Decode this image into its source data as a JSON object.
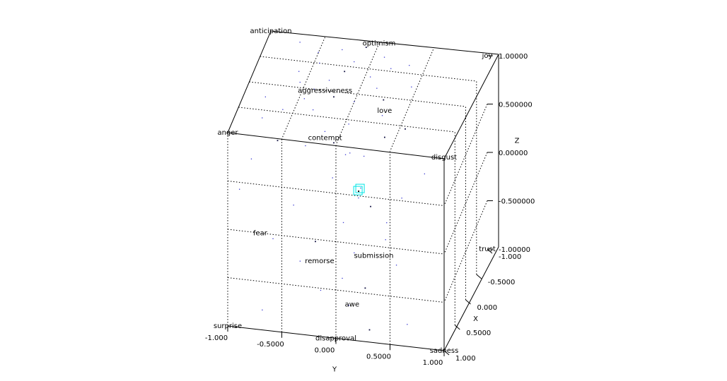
{
  "chart_data": {
    "type": "scatter",
    "dimensions": 3,
    "axes": {
      "x": {
        "label": "X",
        "range": [
          -1,
          1
        ],
        "ticks": [
          "1.000",
          "0.5000",
          "0.000",
          "-0.5000",
          "-1.000"
        ],
        "tick_values": [
          1,
          0.5,
          0,
          -0.5,
          -1
        ]
      },
      "y": {
        "label": "Y",
        "range": [
          -1,
          1
        ],
        "ticks": [
          "-1.000",
          "-0.5000",
          "0.000",
          "0.5000",
          "1.000"
        ],
        "tick_values": [
          -1,
          -0.5,
          0,
          0.5,
          1
        ]
      },
      "z": {
        "label": "Z",
        "range": [
          -1,
          1
        ],
        "ticks": [
          "1.00000",
          "0.500000",
          "0.00000",
          "-0.500000",
          "-1.00000"
        ],
        "tick_values": [
          1,
          0.5,
          0,
          -0.5,
          -1
        ]
      }
    },
    "grid": true,
    "point_color": "#3a3ad0",
    "highlight_color": "#00e5e5",
    "emotion_labels": [
      {
        "text": "anticipation",
        "x": -1.0,
        "y": -1.0,
        "z": 1.0
      },
      {
        "text": "optimism",
        "x": -1.0,
        "y": 0.0,
        "z": 1.0
      },
      {
        "text": "joy",
        "x": -1.0,
        "y": 1.0,
        "z": 1.0
      },
      {
        "text": "aggressiveness",
        "x": 0.0,
        "y": -0.3,
        "z": 1.0
      },
      {
        "text": "anger",
        "x": 1.0,
        "y": -1.0,
        "z": 1.0
      },
      {
        "text": "contempt",
        "x": 1.0,
        "y": -0.1,
        "z": 1.06
      },
      {
        "text": "love",
        "x": 0.25,
        "y": 0.3,
        "z": 1.0
      },
      {
        "text": "disgust",
        "x": 1.0,
        "y": 1.0,
        "z": 1.0
      },
      {
        "text": "fear",
        "x": 1.0,
        "y": -0.7,
        "z": 0.0
      },
      {
        "text": "remorse",
        "x": 1.0,
        "y": -0.15,
        "z": -0.22
      },
      {
        "text": "submission",
        "x": 1.0,
        "y": 0.35,
        "z": -0.1
      },
      {
        "text": "awe",
        "x": 1.0,
        "y": 0.15,
        "z": -0.63
      },
      {
        "text": "trust",
        "x": -1.0,
        "y": 1.0,
        "z": -1.0
      },
      {
        "text": "surprise",
        "x": 1.0,
        "y": -1.0,
        "z": -1.0
      },
      {
        "text": "disapproval",
        "x": 1.0,
        "y": 0.0,
        "z": -1.0
      },
      {
        "text": "sadness",
        "x": 1.0,
        "y": 1.0,
        "z": -1.0
      }
    ],
    "highlight_point": {
      "x": 0.55,
      "y": 0.12,
      "z": 0.3
    },
    "points": [
      {
        "x": 0.95,
        "y": -0.55,
        "z": 0.95
      },
      {
        "x": 0.9,
        "y": -0.3,
        "z": 0.9
      },
      {
        "x": 0.85,
        "y": 0.1,
        "z": 0.85
      },
      {
        "x": 0.8,
        "y": 0.05,
        "z": 0.8
      },
      {
        "x": 0.7,
        "y": 0.2,
        "z": 0.75
      },
      {
        "x": 0.6,
        "y": -0.1,
        "z": 0.8
      },
      {
        "x": 0.5,
        "y": -0.2,
        "z": 0.85
      },
      {
        "x": 0.4,
        "y": 0.0,
        "z": 0.9
      },
      {
        "x": 0.3,
        "y": -0.35,
        "z": 0.95
      },
      {
        "x": 0.2,
        "y": -0.45,
        "z": 1.0
      },
      {
        "x": 0.1,
        "y": -0.2,
        "z": 1.0
      },
      {
        "x": 0.0,
        "y": -0.4,
        "z": 1.0
      },
      {
        "x": -0.1,
        "y": -0.55,
        "z": 1.0
      },
      {
        "x": -0.2,
        "y": -0.3,
        "z": 1.0
      },
      {
        "x": -0.3,
        "y": -0.6,
        "z": 1.0
      },
      {
        "x": -0.4,
        "y": -0.2,
        "z": 1.0
      },
      {
        "x": -0.5,
        "y": -0.45,
        "z": 1.0
      },
      {
        "x": -0.6,
        "y": -0.15,
        "z": 1.0
      },
      {
        "x": -0.7,
        "y": -0.5,
        "z": 1.0
      },
      {
        "x": -0.8,
        "y": -0.3,
        "z": 1.0
      },
      {
        "x": -0.9,
        "y": -0.1,
        "z": 1.0
      },
      {
        "x": -0.75,
        "y": 0.1,
        "z": 1.0
      },
      {
        "x": -0.55,
        "y": 0.2,
        "z": 1.0
      },
      {
        "x": -0.35,
        "y": 0.05,
        "z": 1.0
      },
      {
        "x": -0.15,
        "y": 0.15,
        "z": 1.0
      },
      {
        "x": 0.05,
        "y": 0.25,
        "z": 1.0
      },
      {
        "x": 0.15,
        "y": 0.0,
        "z": 1.0
      },
      {
        "x": 0.35,
        "y": 0.3,
        "z": 1.0
      },
      {
        "x": 0.45,
        "y": -0.6,
        "z": 1.0
      },
      {
        "x": 0.65,
        "y": -0.75,
        "z": 1.0
      },
      {
        "x": 0.75,
        "y": 0.4,
        "z": 1.0
      },
      {
        "x": -0.25,
        "y": 0.45,
        "z": 1.0
      },
      {
        "x": -0.65,
        "y": 0.35,
        "z": 1.0
      },
      {
        "x": -0.85,
        "y": -0.7,
        "z": 1.0
      },
      {
        "x": 0.25,
        "y": -0.8,
        "z": 1.0
      },
      {
        "x": 0.55,
        "y": 0.55,
        "z": 1.0
      },
      {
        "x": 0.9,
        "y": -0.8,
        "z": 0.7
      },
      {
        "x": 0.95,
        "y": 0.6,
        "z": 0.5
      },
      {
        "x": 0.9,
        "y": -0.05,
        "z": 0.6
      },
      {
        "x": 0.85,
        "y": 0.2,
        "z": 0.5
      },
      {
        "x": 0.9,
        "y": 0.3,
        "z": 0.35
      },
      {
        "x": 0.95,
        "y": -0.4,
        "z": 0.3
      },
      {
        "x": 0.9,
        "y": 0.05,
        "z": 0.15
      },
      {
        "x": 0.95,
        "y": 0.45,
        "z": 0.05
      },
      {
        "x": 0.9,
        "y": -0.6,
        "z": -0.1
      },
      {
        "x": 0.95,
        "y": -0.2,
        "z": -0.05
      },
      {
        "x": 0.9,
        "y": 0.15,
        "z": -0.15
      },
      {
        "x": 0.95,
        "y": 0.55,
        "z": -0.2
      },
      {
        "x": 0.9,
        "y": -0.35,
        "z": -0.3
      },
      {
        "x": 0.95,
        "y": 0.05,
        "z": -0.4
      },
      {
        "x": 0.9,
        "y": 0.25,
        "z": -0.5
      },
      {
        "x": 0.95,
        "y": -0.15,
        "z": -0.55
      },
      {
        "x": 0.9,
        "y": 0.1,
        "z": -0.7
      },
      {
        "x": 0.95,
        "y": 0.65,
        "z": -0.8
      },
      {
        "x": 0.9,
        "y": -0.7,
        "z": -0.85
      },
      {
        "x": 0.95,
        "y": 0.3,
        "z": -0.9
      },
      {
        "x": 0.9,
        "y": 0.8,
        "z": 0.75
      },
      {
        "x": 0.95,
        "y": -0.9,
        "z": 0.4
      },
      {
        "x": 0.9,
        "y": 0.45,
        "z": 0.2
      },
      {
        "x": 0.95,
        "y": 0.2,
        "z": 0.45
      }
    ]
  }
}
